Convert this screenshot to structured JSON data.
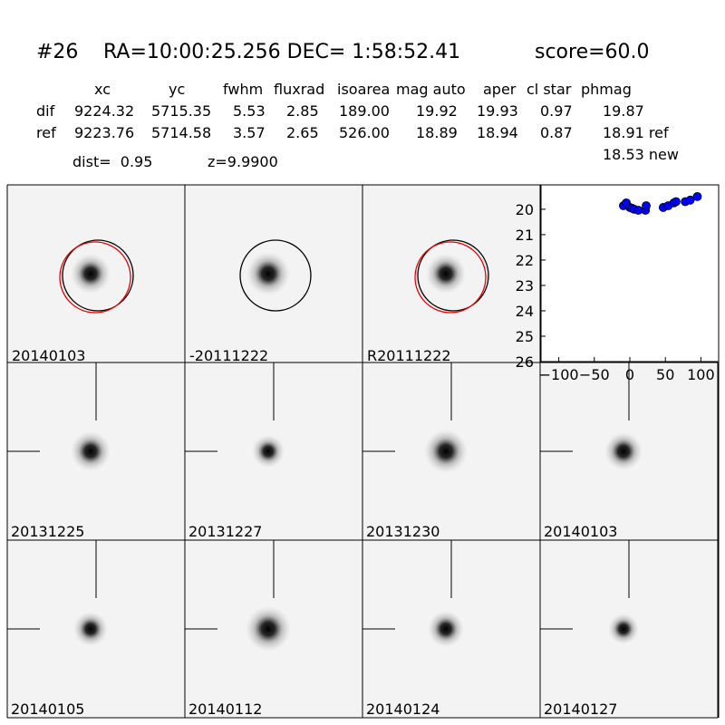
{
  "header": {
    "id": "#26",
    "coords": "RA=10:00:25.256 DEC= 1:58:52.41",
    "score": "score=60.0"
  },
  "table": {
    "columns": [
      "xc",
      "yc",
      "fwhm",
      "fluxrad",
      "isoarea",
      "mag auto",
      "aper",
      "cl star",
      "phmag"
    ],
    "rows": [
      {
        "label": "dif",
        "cells": [
          "9224.32",
          "5715.35",
          "5.53",
          "2.85",
          "189.00",
          "19.92",
          "19.93",
          "0.97",
          "19.87"
        ]
      },
      {
        "label": "ref",
        "cells": [
          "9223.76",
          "5714.58",
          "3.57",
          "2.65",
          "526.00",
          "18.89",
          "18.94",
          "0.87",
          "18.91 ref"
        ]
      }
    ],
    "extra": "18.53 new"
  },
  "dist": "dist=  0.95",
  "z": "z=9.9900",
  "top_stamps": [
    {
      "label": "20140103"
    },
    {
      "label": "-20111222"
    },
    {
      "label": "R20111222"
    }
  ],
  "stamps": [
    {
      "label": "20131225",
      "color": "#000000"
    },
    {
      "label": "20131227",
      "color": "#000000"
    },
    {
      "label": "20131230",
      "color": "#000000"
    },
    {
      "label": "20140103",
      "color": "#ff0000"
    },
    {
      "label": "20140105",
      "color": "#000000"
    },
    {
      "label": "20140112",
      "color": "#000000"
    },
    {
      "label": "20140124",
      "color": "#000000"
    },
    {
      "label": "20140127",
      "color": "#000000"
    }
  ],
  "chart_data": {
    "type": "scatter",
    "color": "#0000ff",
    "x": [
      -9,
      -5,
      0,
      3,
      6,
      12,
      22,
      23,
      47,
      54,
      62,
      65,
      78,
      85,
      95
    ],
    "values": [
      19.86,
      19.75,
      19.93,
      19.96,
      20.0,
      20.04,
      20.04,
      19.86,
      19.93,
      19.86,
      19.75,
      19.7,
      19.7,
      19.64,
      19.5
    ],
    "xlim": [
      -125,
      125
    ],
    "ylim": [
      26,
      19.04
    ],
    "xticks": [
      {
        "value": -100,
        "label": "−100"
      },
      {
        "value": -50,
        "label": "−50"
      },
      0,
      50,
      100
    ],
    "yticks": [
      20,
      21,
      22,
      23,
      24,
      25,
      26
    ]
  }
}
